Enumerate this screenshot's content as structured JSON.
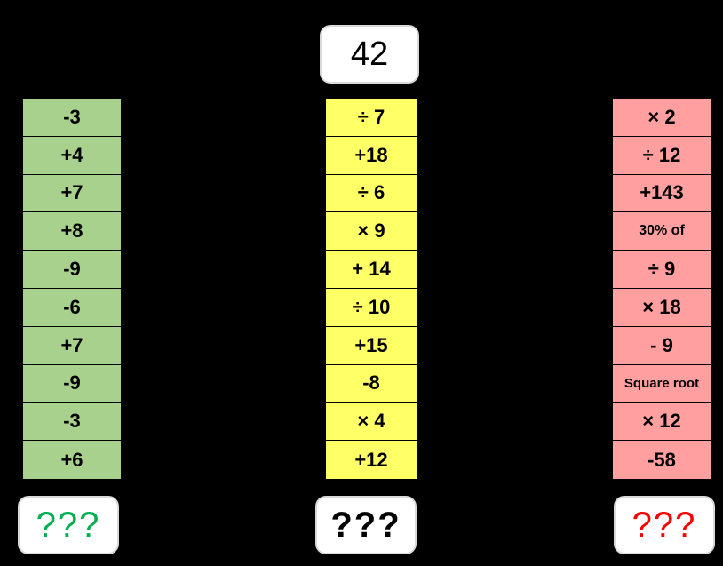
{
  "start_number": "42",
  "columns": {
    "green": {
      "color": "#a9d18e",
      "items": [
        "-3",
        "+4",
        "+7",
        "+8",
        "-9",
        "-6",
        "+7",
        "-9",
        "-3",
        "+6"
      ],
      "answer": "???",
      "answer_color": "#00b050"
    },
    "yellow": {
      "color": "#ffff66",
      "items": [
        "÷ 7",
        "+18",
        "÷ 6",
        "× 9",
        "+ 14",
        "÷ 10",
        "+15",
        "-8",
        "× 4",
        "+12"
      ],
      "answer": "???",
      "answer_color": "#000000"
    },
    "red": {
      "color": "#ff9f9f",
      "items": [
        "× 2",
        "÷ 12",
        "+143",
        "30% of",
        "÷ 9",
        "× 18",
        "- 9",
        "Square root",
        "× 12",
        "-58"
      ],
      "answer": "???",
      "answer_color": "#ff0000"
    }
  }
}
